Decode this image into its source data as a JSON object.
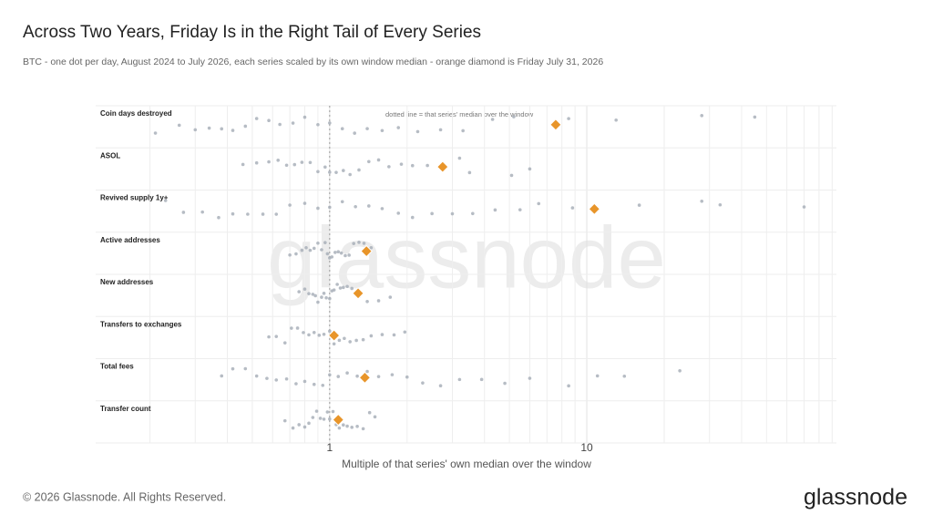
{
  "chart_data": {
    "type": "strip",
    "title": "Across Two Years, Friday Is in the Right Tail of Every Series",
    "subtitle": "BTC - one dot per day, August 2024 to July 2026, each series scaled by its own window median - orange diamond is Friday July 31, 2026",
    "annotation": "dotted line = that series' median over the window",
    "xlabel": "Multiple of that series' own median over the window",
    "log_x": true,
    "median_line": 1,
    "xlim": [
      0.123,
      93.5
    ],
    "xticks": [
      1,
      10
    ],
    "xminorticks": [
      0.2,
      0.3,
      0.4,
      0.5,
      0.6,
      0.7,
      0.8,
      0.9,
      2,
      3,
      4,
      5,
      6,
      7,
      8,
      9,
      20,
      30,
      40,
      50,
      60,
      70,
      80,
      90
    ],
    "dot_color": "#a9b0ba",
    "friday_color": "#e8952a",
    "series": [
      {
        "name": "Coin days destroyed",
        "friday": 7.57,
        "values": [
          0.21,
          0.26,
          0.3,
          0.34,
          0.38,
          0.42,
          0.47,
          0.52,
          0.58,
          0.64,
          0.72,
          0.8,
          0.9,
          1,
          1.12,
          1.25,
          1.4,
          1.6,
          1.85,
          2.2,
          2.7,
          3.3,
          4.3,
          5.2,
          8.5,
          13,
          28,
          45
        ]
      },
      {
        "name": "ASOL",
        "friday": 2.75,
        "values": [
          0.46,
          0.52,
          0.58,
          0.63,
          0.68,
          0.73,
          0.78,
          0.84,
          0.9,
          0.96,
          1,
          1.06,
          1.13,
          1.2,
          1.3,
          1.42,
          1.55,
          1.7,
          1.9,
          2.1,
          2.4,
          3.2,
          3.5,
          5.1,
          6.0
        ]
      },
      {
        "name": "Revived supply 1y+",
        "friday": 10.7,
        "values": [
          0.23,
          0.27,
          0.32,
          0.37,
          0.42,
          0.48,
          0.55,
          0.62,
          0.7,
          0.8,
          0.9,
          1,
          1.12,
          1.26,
          1.42,
          1.6,
          1.85,
          2.1,
          2.5,
          3,
          3.6,
          4.4,
          5.5,
          6.5,
          8.8,
          16,
          28,
          33,
          70
        ]
      },
      {
        "name": "Active addresses",
        "friday": 1.39,
        "values": [
          0.7,
          0.74,
          0.78,
          0.81,
          0.84,
          0.87,
          0.9,
          0.93,
          0.96,
          0.98,
          1,
          1.02,
          1.05,
          1.08,
          1.11,
          1.15,
          1.19,
          1.24,
          1.3,
          1.36,
          1.45
        ]
      },
      {
        "name": "New addresses",
        "friday": 1.29,
        "values": [
          0.76,
          0.8,
          0.83,
          0.86,
          0.88,
          0.9,
          0.93,
          0.95,
          0.97,
          1,
          1.02,
          1.04,
          1.07,
          1.1,
          1.13,
          1.17,
          1.22,
          1.3,
          1.4,
          1.55,
          1.72
        ]
      },
      {
        "name": "Transfers to exchanges",
        "friday": 1.04,
        "values": [
          0.58,
          0.62,
          0.67,
          0.71,
          0.75,
          0.79,
          0.83,
          0.87,
          0.91,
          0.95,
          1,
          1.04,
          1.09,
          1.14,
          1.2,
          1.27,
          1.35,
          1.45,
          1.6,
          1.78,
          1.96
        ]
      },
      {
        "name": "Total fees",
        "friday": 1.37,
        "values": [
          0.38,
          0.42,
          0.47,
          0.52,
          0.57,
          0.62,
          0.68,
          0.74,
          0.8,
          0.87,
          0.94,
          1,
          1.08,
          1.17,
          1.28,
          1.4,
          1.55,
          1.75,
          2,
          2.3,
          2.7,
          3.2,
          3.9,
          4.8,
          6,
          8.5,
          11,
          14,
          23
        ]
      },
      {
        "name": "Transfer count",
        "friday": 1.08,
        "values": [
          0.67,
          0.72,
          0.76,
          0.8,
          0.83,
          0.86,
          0.89,
          0.92,
          0.95,
          0.98,
          1,
          1.03,
          1.06,
          1.09,
          1.13,
          1.17,
          1.22,
          1.28,
          1.35,
          1.43,
          1.5
        ]
      }
    ]
  },
  "footer": {
    "copyright": "© 2026 Glassnode. All Rights Reserved.",
    "logo": "glassnode",
    "watermark": "glassnode"
  }
}
